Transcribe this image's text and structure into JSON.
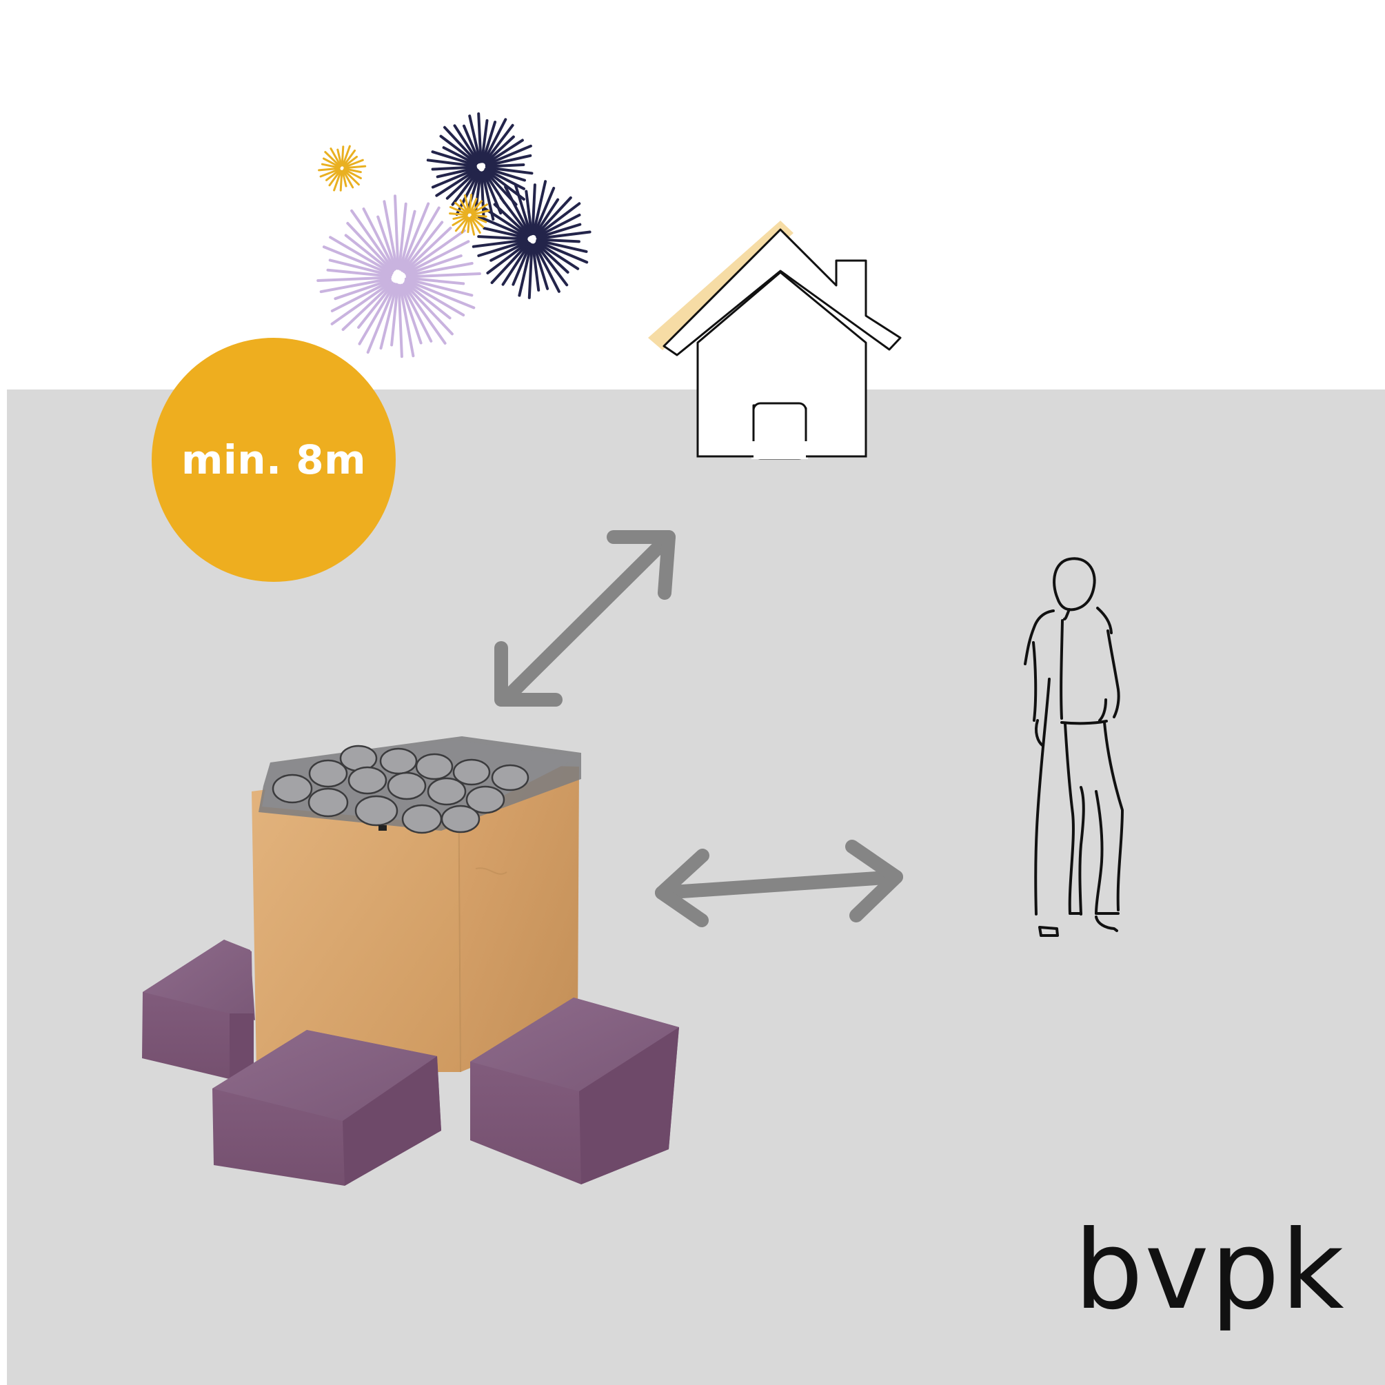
{
  "badge": {
    "label": "min. 8m",
    "color": "#eeae1f"
  },
  "logo": {
    "text": "bvpk"
  },
  "icons": {
    "fireworks": [
      "lavender-firework-icon",
      "navy-firework-icon",
      "navy-firework-icon",
      "gold-firework-icon",
      "gold-firework-icon"
    ],
    "house": "house-icon",
    "person": "person-icon",
    "arrow_to_house": "double-arrow-icon",
    "arrow_to_person": "double-arrow-icon",
    "firework_cake": "firework-battery-icon",
    "support_blocks": "stone-block-icon"
  },
  "colors": {
    "ground": "#d9d9d9",
    "arrow": "#858585",
    "firework_lavender": "#c9b3df",
    "firework_navy": "#23244a",
    "firework_gold": "#e9b021",
    "roof_highlight": "#f6dca5",
    "box": "#d9a46c",
    "blocks": "#8a5f86"
  }
}
